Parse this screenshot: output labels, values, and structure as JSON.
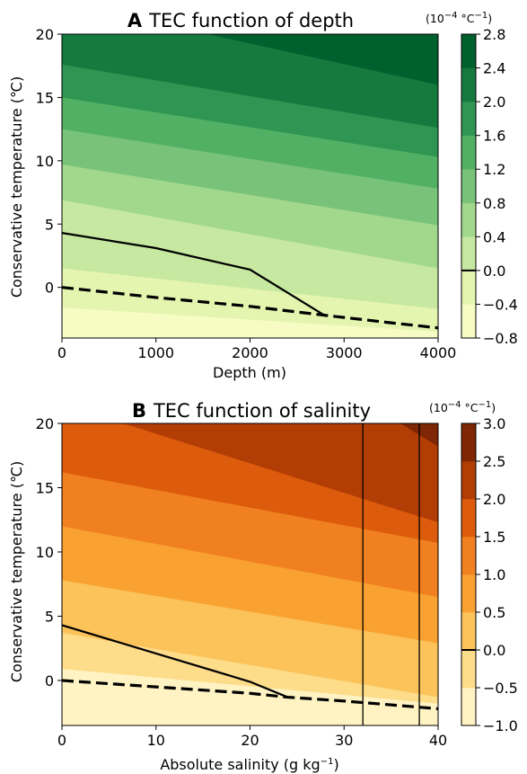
{
  "panels": [
    {
      "letter": "A",
      "title": "TEC function of depth",
      "xlabel": "Depth (m)",
      "ylabel": "Conservative temperature (℃)",
      "cbar_unit_base": "(10",
      "cbar_unit_exp": "−4",
      "cbar_unit_rest": " °C",
      "cbar_unit_exp2": "−1",
      "cbar_unit_close": ")"
    },
    {
      "letter": "B",
      "title": "TEC function of salinity",
      "xlabel_base": "Absolute salinity (g kg",
      "xlabel_exp": "−1",
      "xlabel_close": ")",
      "ylabel": "Conservative temperature (℃)",
      "cbar_unit_base": "(10",
      "cbar_unit_exp": "−4",
      "cbar_unit_rest": " °C",
      "cbar_unit_exp2": "−1",
      "cbar_unit_close": ")"
    }
  ],
  "chart_data": [
    {
      "type": "contourf",
      "title": "TEC function of depth",
      "panel": "A",
      "xlabel": "Depth (m)",
      "ylabel": "Conservative temperature (℃)",
      "xlim": [
        0,
        4000
      ],
      "ylim": [
        -4,
        20
      ],
      "xticks": [
        0,
        1000,
        2000,
        3000,
        4000
      ],
      "yticks": [
        0,
        5,
        10,
        15,
        20
      ],
      "levels": [
        -0.8,
        -0.4,
        0.0,
        0.4,
        0.8,
        1.2,
        1.6,
        2.0,
        2.4,
        2.8
      ],
      "colorbar_ticks": [
        "−0.8",
        "−0.4",
        "0.0",
        "0.4",
        "0.8",
        "1.2",
        "1.6",
        "2.0",
        "2.4",
        "2.8"
      ],
      "colormap": "Greens",
      "band_colors": [
        "#f7fcc4",
        "#e4f5b0",
        "#c6e8a0",
        "#a2d88c",
        "#78c27a",
        "#52b064",
        "#2e9652",
        "#167a3f",
        "#00612e"
      ],
      "contour_lines_at_level_boundaries": [
        {
          "x": [
            0,
            4000
          ],
          "y": [
            -1.6,
            -3.5
          ]
        },
        {
          "x": [
            0,
            4000
          ],
          "y": [
            1.5,
            -1.7
          ]
        },
        {
          "x": [
            0,
            4000
          ],
          "y": [
            6.9,
            1.5
          ]
        },
        {
          "x": [
            0,
            4000
          ],
          "y": [
            9.7,
            4.9
          ]
        },
        {
          "x": [
            0,
            4000
          ],
          "y": [
            12.5,
            7.8
          ]
        },
        {
          "x": [
            0,
            4000
          ],
          "y": [
            15.0,
            10.3
          ]
        },
        {
          "x": [
            0,
            4000
          ],
          "y": [
            17.6,
            12.6
          ]
        },
        {
          "x": [
            1550,
            4000
          ],
          "y": [
            20.0,
            16.0
          ]
        }
      ],
      "zero_tec_line": {
        "x": [
          0,
          1000,
          2000,
          2790
        ],
        "y": [
          4.3,
          3.1,
          1.4,
          -2.2
        ],
        "style": "solid"
      },
      "freezing_line": {
        "x": [
          0,
          1000,
          2000,
          2790,
          3500,
          4000
        ],
        "y": [
          0.0,
          -0.8,
          -1.5,
          -2.2,
          -2.8,
          -3.2
        ],
        "style": "dashed"
      }
    },
    {
      "type": "contourf",
      "title": "TEC function of salinity",
      "panel": "B",
      "xlabel": "Absolute salinity (g kg⁻¹)",
      "ylabel": "Conservative temperature (℃)",
      "xlim": [
        0,
        40
      ],
      "ylim": [
        -3.5,
        20
      ],
      "xticks": [
        0,
        10,
        20,
        30,
        40
      ],
      "yticks": [
        0,
        5,
        10,
        15,
        20
      ],
      "levels": [
        -1.0,
        -0.5,
        0.0,
        0.5,
        1.0,
        1.5,
        2.0,
        2.5,
        3.0
      ],
      "colorbar_ticks": [
        "−1.0",
        "−0.5",
        "0.0",
        "0.5",
        "1.0",
        "1.5",
        "2.0",
        "2.5",
        "3.0"
      ],
      "colormap": "Oranges",
      "band_colors": [
        "#fff3c4",
        "#fddc8a",
        "#fcc35a",
        "#f9a131",
        "#f08020",
        "#dc5b0c",
        "#b23d05",
        "#7f2604"
      ],
      "contour_lines_at_level_boundaries": [
        {
          "x": [
            0,
            40
          ],
          "y": [
            0.9,
            -1.8
          ]
        },
        {
          "x": [
            0,
            40
          ],
          "y": [
            3.7,
            -1.3
          ]
        },
        {
          "x": [
            0,
            40
          ],
          "y": [
            7.8,
            2.9
          ]
        },
        {
          "x": [
            0,
            40
          ],
          "y": [
            12.0,
            6.5
          ]
        },
        {
          "x": [
            0,
            40
          ],
          "y": [
            16.2,
            10.7
          ]
        },
        {
          "x": [
            6.5,
            40
          ],
          "y": [
            20.0,
            12.3
          ]
        },
        {
          "x": [
            36,
            40
          ],
          "y": [
            20.0,
            18.2
          ]
        }
      ],
      "zero_tec_line": {
        "x": [
          0,
          10,
          20,
          24
        ],
        "y": [
          4.3,
          2.1,
          -0.1,
          -1.3
        ],
        "style": "solid"
      },
      "freezing_line": {
        "x": [
          0,
          10,
          20,
          24,
          30,
          40
        ],
        "y": [
          0.0,
          -0.5,
          -1.0,
          -1.3,
          -1.6,
          -2.2
        ],
        "style": "dashed"
      },
      "vertical_lines_x": [
        32,
        38
      ]
    }
  ]
}
